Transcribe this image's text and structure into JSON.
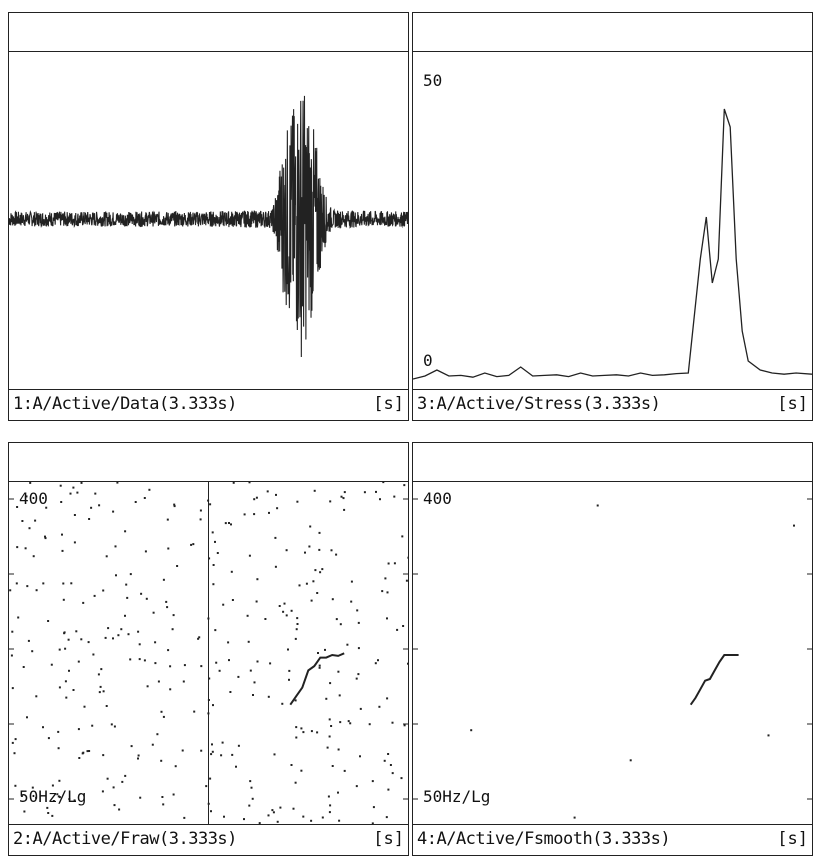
{
  "panels": [
    {
      "caption": "1:A/Active/Data(3.333s)",
      "unit": "[s]"
    },
    {
      "caption": "3:A/Active/Stress(3.333s)",
      "unit": "[s]",
      "y_top": "50",
      "y_bottom": "0"
    },
    {
      "caption": "2:A/Active/Fraw(3.333s)",
      "unit": "[s]",
      "y_top": "400",
      "y_bottom": "50Hz/Lg"
    },
    {
      "caption": "4:A/Active/Fsmooth(3.333s)",
      "unit": "[s]",
      "y_top": "400",
      "y_bottom": "50Hz/Lg"
    }
  ],
  "chart_data": [
    {
      "type": "line",
      "caption": "1:A/Active/Data(3.333s)",
      "x_unit": "s",
      "x_range": [
        0,
        3.333
      ],
      "series": [
        {
          "envelope_x": [
            0,
            1.5,
            2.2,
            2.3,
            2.35,
            2.4,
            2.45,
            2.5,
            2.55,
            2.6,
            2.65,
            2.7,
            3.333
          ],
          "envelope_amp": [
            0.05,
            0.05,
            0.06,
            0.55,
            0.7,
            0.8,
            0.95,
            0.75,
            0.6,
            0.35,
            0.15,
            0.06,
            0.05
          ]
        }
      ]
    },
    {
      "type": "line",
      "caption": "3:A/Active/Stress(3.333s)",
      "x_unit": "s",
      "ylim": [
        0,
        50
      ],
      "series": [
        {
          "x": [
            0,
            0.1,
            0.2,
            0.3,
            0.4,
            0.5,
            0.6,
            0.7,
            0.8,
            0.9,
            1.0,
            1.1,
            1.2,
            1.3,
            1.4,
            1.5,
            1.6,
            1.7,
            1.8,
            1.9,
            2.0,
            2.1,
            2.2,
            2.3,
            2.4,
            2.45,
            2.5,
            2.55,
            2.6,
            2.65,
            2.7,
            2.75,
            2.8,
            2.9,
            3.0,
            3.1,
            3.2,
            3.333
          ],
          "y": [
            0,
            0.5,
            1.5,
            0.5,
            0.6,
            0.3,
            1,
            0.4,
            0.6,
            2,
            0.5,
            0.6,
            0.7,
            0.4,
            1,
            0.5,
            0.6,
            0.7,
            0.5,
            1,
            0.6,
            0.7,
            0.9,
            1,
            20,
            27,
            16,
            20,
            45,
            42,
            20,
            8,
            3,
            1.5,
            1,
            0.8,
            1,
            0.8
          ]
        }
      ]
    },
    {
      "type": "scatter",
      "caption": "2:A/Active/Fraw(3.333s)",
      "x_unit": "s",
      "y_top": "400",
      "y_bottom": "50Hz/Lg",
      "series": [
        {
          "x": [
            2.35,
            2.4,
            2.45,
            2.5,
            2.55,
            2.6,
            2.65,
            2.7,
            2.75,
            2.8
          ],
          "y": [
            160,
            170,
            180,
            200,
            205,
            215,
            215,
            218,
            217,
            220
          ]
        }
      ]
    },
    {
      "type": "line",
      "caption": "4:A/Active/Fsmooth(3.333s)",
      "x_unit": "s",
      "y_top": "400",
      "y_bottom": "50Hz/Lg",
      "series": [
        {
          "x": [
            2.32,
            2.36,
            2.4,
            2.44,
            2.48,
            2.52,
            2.56,
            2.6,
            2.66,
            2.72
          ],
          "y": [
            160,
            168,
            178,
            188,
            190,
            200,
            210,
            218,
            218,
            218
          ]
        }
      ]
    }
  ]
}
